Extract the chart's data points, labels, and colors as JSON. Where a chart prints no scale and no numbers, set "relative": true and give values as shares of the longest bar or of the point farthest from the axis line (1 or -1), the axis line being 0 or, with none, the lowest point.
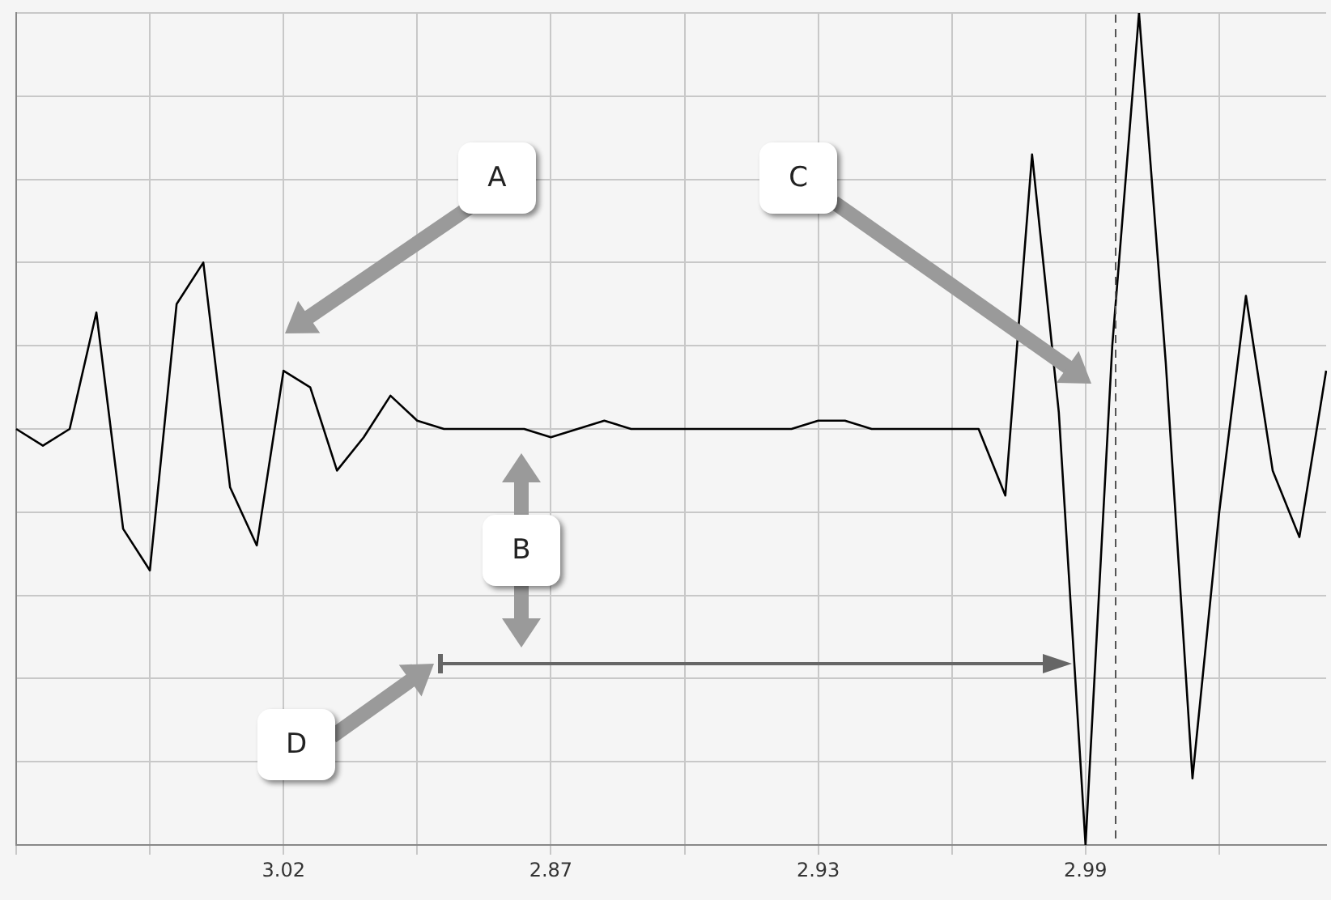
{
  "chart_data": {
    "type": "line",
    "relative": true,
    "tick_labels": "x",
    "grid": true,
    "legend": false,
    "marker": "none",
    "line_style": "solid",
    "categories": [
      null,
      null,
      null,
      null,
      null,
      null,
      null,
      null,
      null,
      null,
      "3.02",
      null,
      null,
      null,
      null,
      null,
      null,
      null,
      null,
      null,
      "2.87",
      null,
      null,
      null,
      null,
      null,
      null,
      null,
      null,
      null,
      "2.93",
      null,
      null,
      null,
      null,
      null,
      null,
      null,
      null,
      null,
      "2.99",
      null,
      null,
      null,
      null,
      null,
      null,
      null,
      null,
      null
    ],
    "series": [
      {
        "color": "#000000",
        "values": [
          0.5,
          0.48,
          0.5,
          0.64,
          0.38,
          0.33,
          0.65,
          0.7,
          0.43,
          0.36,
          0.57,
          0.55,
          0.45,
          0.49,
          0.54,
          0.51,
          0.5,
          0.5,
          0.5,
          0.5,
          0.49,
          0.5,
          0.51,
          0.5,
          0.5,
          0.5,
          0.5,
          0.5,
          0.5,
          0.5,
          0.51,
          0.51,
          0.5,
          0.5,
          0.5,
          0.5,
          0.5,
          0.42,
          0.83,
          0.52,
          0,
          0.6,
          1,
          0.58,
          0.08,
          0.4,
          0.66,
          0.45,
          0.37,
          0.57
        ]
      }
    ],
    "annotations": [
      "A",
      "B",
      "C",
      "D"
    ]
  }
}
